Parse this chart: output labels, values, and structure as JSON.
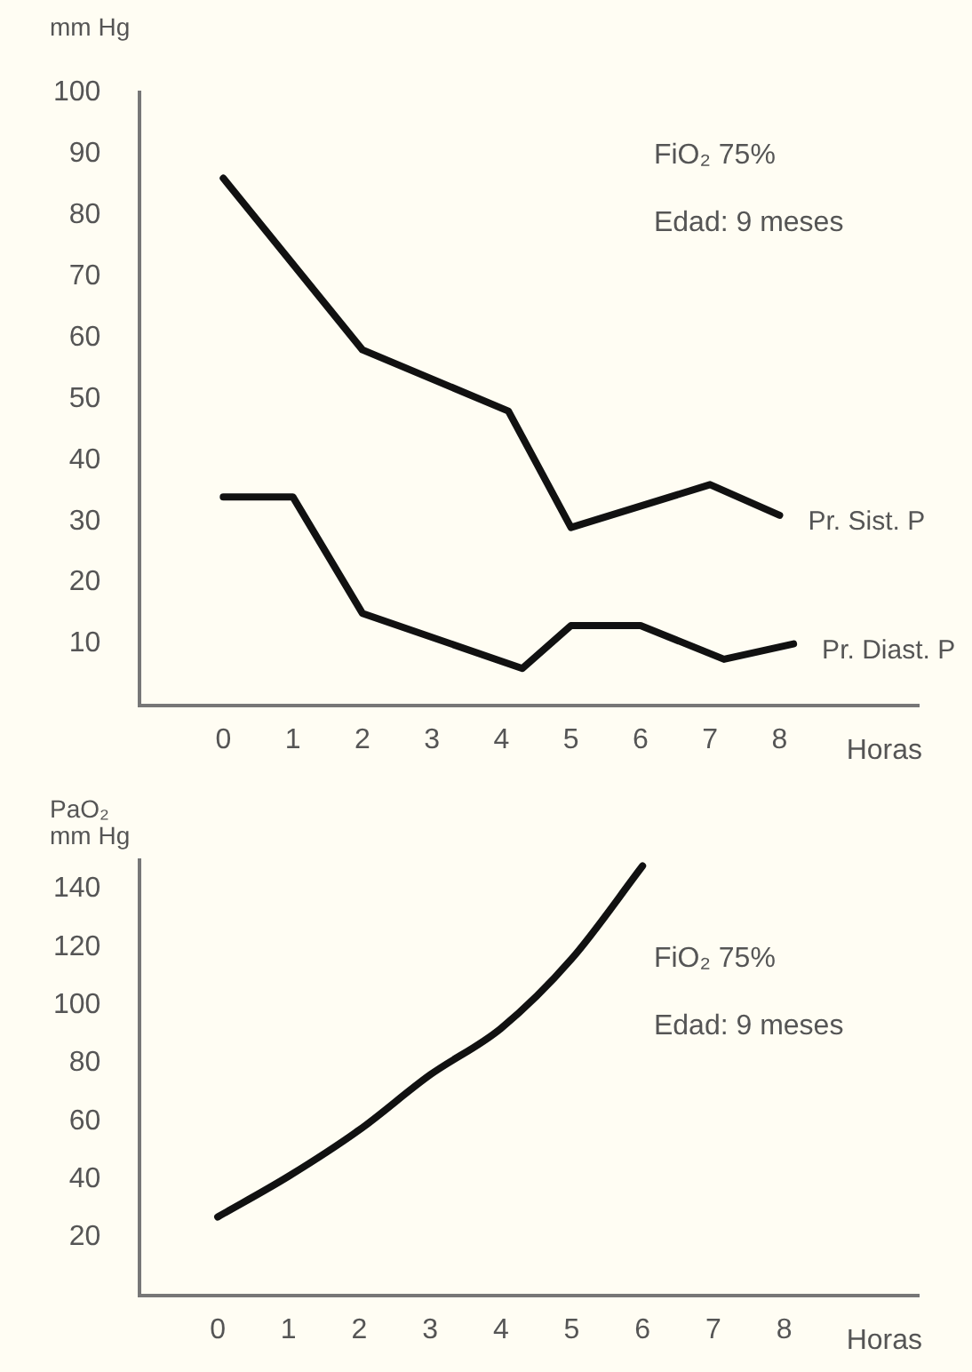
{
  "chart_data": [
    {
      "type": "line",
      "ylabel": "mm Hg",
      "xlabel": "Horas",
      "xlim": [
        -1.2,
        10
      ],
      "xticks": [
        0,
        1,
        2,
        3,
        4,
        5,
        6,
        7,
        8
      ],
      "ylim": [
        0,
        100
      ],
      "yticks": [
        10,
        20,
        30,
        40,
        50,
        60,
        70,
        80,
        90,
        100
      ],
      "grid": false,
      "legend": false,
      "marker": "none",
      "line_style": "solid",
      "annotations": [
        "FiO₂ 75%",
        "Edad: 9 meses"
      ],
      "series": [
        {
          "name": "Pr. Sist. P",
          "color": "#111111",
          "x": [
            0,
            2,
            4.1,
            5,
            7,
            8
          ],
          "values": [
            86,
            58,
            48,
            29,
            36,
            31
          ]
        },
        {
          "name": "Pr. Diast. P",
          "color": "#111111",
          "x": [
            0,
            1,
            2,
            4.3,
            5,
            6,
            7.2,
            8.2
          ],
          "values": [
            34,
            34,
            15,
            6,
            13,
            13,
            7.5,
            10
          ]
        }
      ]
    },
    {
      "type": "line",
      "ylabel": "PaO₂\nmm Hg",
      "xlabel": "Horas",
      "xlim": [
        -1.1,
        9.9
      ],
      "xticks": [
        0,
        1,
        2,
        3,
        4,
        5,
        6,
        7,
        8
      ],
      "ylim": [
        0,
        150
      ],
      "yticks": [
        20,
        40,
        60,
        80,
        100,
        120,
        140
      ],
      "grid": false,
      "legend": false,
      "marker": "none",
      "line_style": "solid",
      "annotations": [
        "FiO₂ 75%",
        "Edad: 9 meses"
      ],
      "series": [
        {
          "color": "#111111",
          "x": [
            0,
            1,
            2,
            3,
            4,
            5,
            6
          ],
          "values": [
            27,
            41,
            57,
            76,
            92,
            116,
            148
          ]
        }
      ]
    }
  ]
}
